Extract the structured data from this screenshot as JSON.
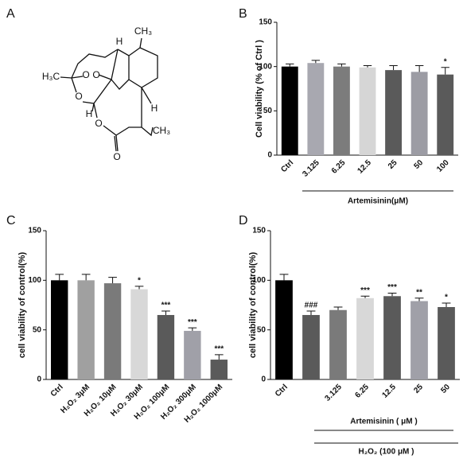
{
  "structure": {
    "panel": "A",
    "atoms": [
      "H",
      "CH₃",
      "H₃C",
      "O",
      "O",
      "O",
      "H",
      "O",
      "H",
      "CH₃",
      "O"
    ]
  },
  "chart_data": [
    {
      "type": "bar",
      "panel": "B",
      "ylabel": "Cell viability (% of Ctrl )",
      "categories": [
        "Ctrl",
        "3.125",
        "6.25",
        "12.5",
        "25",
        "50",
        "100"
      ],
      "values": [
        100,
        104,
        100,
        99,
        96,
        94,
        91
      ],
      "errors": [
        3,
        3,
        3,
        2,
        5,
        7,
        8
      ],
      "annotations": [
        null,
        null,
        null,
        null,
        null,
        null,
        "*"
      ],
      "colors": [
        "#000000",
        "#a8a8b0",
        "#7c7c7c",
        "#d6d6d6",
        "#5a5a5a",
        "#9c9ca4",
        "#5a5a5a"
      ],
      "group_labels": [
        "Artemisinin(μM)"
      ],
      "ylim": [
        0,
        150
      ],
      "yticks": [
        0,
        50,
        100,
        150
      ]
    },
    {
      "type": "bar",
      "panel": "C",
      "ylabel": "cell viability of control(%)",
      "categories": [
        "Ctrl",
        "H₂O₂ 3μM",
        "H₂O₂ 10μM",
        "H₂O₂ 30μM",
        "H₂O₂ 100μM",
        "H₂O₂ 300μM",
        "H₂O₂ 1000μM"
      ],
      "values": [
        100,
        100,
        97,
        91,
        65,
        49,
        20
      ],
      "errors": [
        6,
        6,
        6,
        3,
        4,
        3,
        5
      ],
      "annotations": [
        null,
        null,
        null,
        "*",
        "***",
        "***",
        "***"
      ],
      "colors": [
        "#000000",
        "#a0a0a0",
        "#7a7a7a",
        "#d8d8d8",
        "#5a5a5a",
        "#a0a0a8",
        "#5a5a5a"
      ],
      "group_labels": [],
      "ylim": [
        0,
        150
      ],
      "yticks": [
        0,
        50,
        100,
        150
      ]
    },
    {
      "type": "bar",
      "panel": "D",
      "ylabel": "cell viability of control(%)",
      "categories": [
        "Ctrl",
        null,
        "3.125",
        "6.25",
        "12.5",
        "25",
        "50"
      ],
      "values": [
        100,
        65,
        70,
        82,
        84,
        79,
        73
      ],
      "errors": [
        6,
        4,
        3,
        2,
        3,
        3,
        4
      ],
      "annotations": [
        null,
        "###",
        null,
        "***",
        "***",
        "**",
        "*"
      ],
      "colors": [
        "#000000",
        "#5a5a5a",
        "#7a7a7a",
        "#d8d8d8",
        "#5a5a5a",
        "#a0a0a8",
        "#5a5a5a"
      ],
      "group_labels": [
        "Artemisinin ( μM )",
        "H₂O₂ (100 μM )"
      ],
      "ylim": [
        0,
        150
      ],
      "yticks": [
        0,
        50,
        100,
        150
      ]
    }
  ]
}
